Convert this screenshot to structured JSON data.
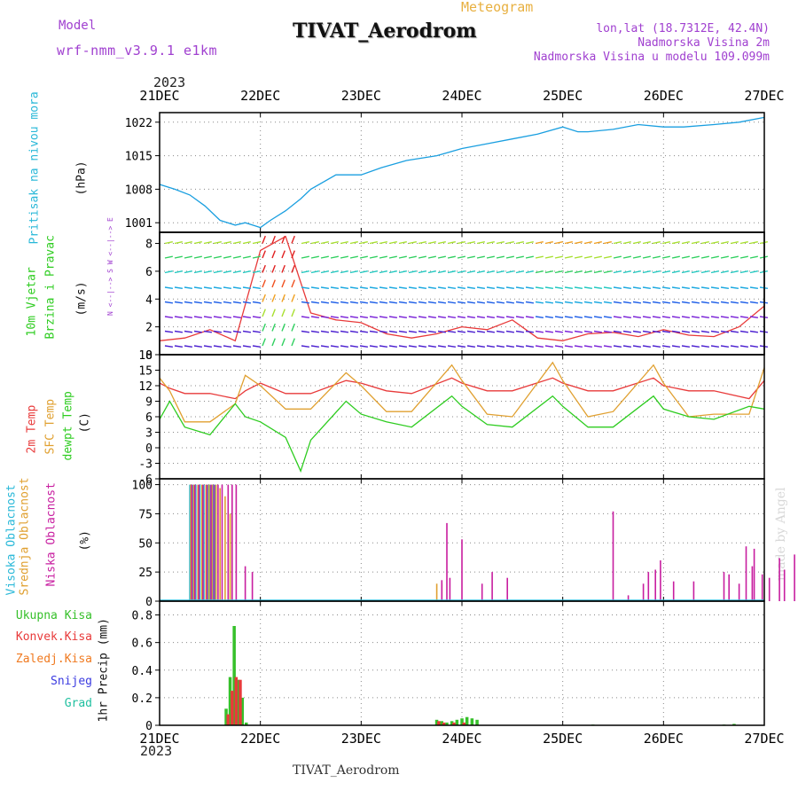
{
  "header": {
    "title": "TIVAT_Aerodrom",
    "subtitle": "Meteogram",
    "model_label": "Model",
    "model_name": "wrf-nmm_v3.9.1 e1km",
    "lonlat": "lon,lat (18.7312E, 42.4N)",
    "elevation": "Nadmorska Visina 2m",
    "model_elevation": "Nadmorska Visina u modelu 109.099m",
    "year_top": "2023",
    "year_bottom": "2023",
    "footer_title": "TIVAT_Aerodrom",
    "credit": "made by Angel"
  },
  "colors": {
    "pressure": "#1a9fe0",
    "temp2m": "#e83a3a",
    "sfc_temp": "#e0a030",
    "dewpoint": "#2ecc20",
    "high_cloud": "#29b8d8",
    "mid_cloud": "#e0a030",
    "low_cloud": "#c81ea0",
    "total_precip": "#36c02a",
    "convective": "#e83a3a",
    "frozen": "#f07a20",
    "snow": "#3a3ae0",
    "graupel": "#20c0a0",
    "purple_text": "#a040d0",
    "title_gold": "#e8b040"
  },
  "chart_data": [
    {
      "id": "pressure",
      "type": "line",
      "title": "",
      "ylabel": "(hPa)",
      "side_labels": [
        "Pritisak na nivou mora"
      ],
      "ylim": [
        999,
        1024
      ],
      "yticks": [
        1001,
        1008,
        1015,
        1022
      ],
      "xticks": [
        "21DEC",
        "22DEC",
        "23DEC",
        "24DEC",
        "25DEC",
        "26DEC",
        "27DEC"
      ],
      "series": [
        {
          "color_key": "pressure",
          "x": [
            0,
            0.15,
            0.3,
            0.45,
            0.6,
            0.75,
            0.85,
            1.0,
            1.1,
            1.25,
            1.4,
            1.5,
            1.75,
            2.0,
            2.2,
            2.45,
            2.75,
            3.0,
            3.25,
            3.5,
            3.75,
            4.0,
            4.15,
            4.25,
            4.5,
            4.75,
            5.0,
            5.2,
            5.5,
            5.75,
            6.0
          ],
          "values": [
            1009.0,
            1008.0,
            1006.8,
            1004.5,
            1001.5,
            1000.5,
            1001.0,
            1000.0,
            1001.5,
            1003.5,
            1006.0,
            1008.0,
            1011.0,
            1011.0,
            1012.5,
            1014.0,
            1015.0,
            1016.5,
            1017.5,
            1018.5,
            1019.5,
            1021.0,
            1020.0,
            1020.0,
            1020.5,
            1021.5,
            1021.0,
            1021.0,
            1021.5,
            1022.0,
            1023.0
          ]
        }
      ]
    },
    {
      "id": "wind",
      "type": "line",
      "title": "",
      "ylabel": "(m/s)",
      "side_labels": [
        "10m Vjetar",
        "Brzina i Pravac"
      ],
      "compass": "N <--|--> S   W <--|--> E",
      "ylim": [
        0,
        8.8
      ],
      "yticks": [
        0,
        2,
        4,
        6,
        8
      ],
      "xticks": [
        "21DEC",
        "22DEC",
        "23DEC",
        "24DEC",
        "25DEC",
        "26DEC",
        "27DEC"
      ],
      "series": [
        {
          "color_key": "temp2m",
          "x": [
            0,
            0.25,
            0.5,
            0.75,
            1.0,
            1.25,
            1.5,
            1.75,
            2.0,
            2.25,
            2.5,
            2.75,
            3.0,
            3.25,
            3.5,
            3.75,
            4.0,
            4.25,
            4.5,
            4.75,
            5.0,
            5.25,
            5.5,
            5.75,
            6.0
          ],
          "values": [
            1.0,
            1.2,
            1.8,
            1.0,
            7.5,
            8.5,
            3.0,
            2.5,
            2.3,
            1.5,
            1.2,
            1.5,
            2.0,
            1.8,
            2.5,
            1.2,
            1.0,
            1.5,
            1.6,
            1.3,
            1.8,
            1.4,
            1.3,
            2.0,
            3.5
          ]
        }
      ]
    },
    {
      "id": "temperature",
      "type": "line",
      "title": "",
      "ylabel": "(C)",
      "side_labels": [
        "2m Temp",
        "SFC Temp",
        "dewpt Temp"
      ],
      "ylim": [
        -6,
        18
      ],
      "yticks": [
        -6,
        -3,
        0,
        3,
        6,
        9,
        12,
        15,
        18
      ],
      "xticks": [
        "21DEC",
        "22DEC",
        "23DEC",
        "24DEC",
        "25DEC",
        "26DEC",
        "27DEC"
      ],
      "series": [
        {
          "color_key": "temp2m",
          "x": [
            0,
            0.1,
            0.25,
            0.5,
            0.75,
            0.85,
            1.0,
            1.25,
            1.5,
            1.85,
            2.0,
            2.25,
            2.5,
            2.9,
            3.0,
            3.25,
            3.5,
            3.9,
            4.0,
            4.25,
            4.5,
            4.9,
            5.0,
            5.25,
            5.5,
            5.85,
            6.0
          ],
          "values": [
            12.5,
            11.5,
            10.5,
            10.5,
            9.5,
            11.0,
            12.5,
            10.5,
            10.5,
            13.0,
            12.5,
            11.0,
            10.5,
            13.5,
            12.5,
            11.0,
            11.0,
            13.5,
            12.5,
            11.0,
            11.0,
            13.5,
            12.0,
            11.0,
            11.0,
            9.5,
            13.0
          ]
        },
        {
          "color_key": "sfc_temp",
          "x": [
            0,
            0.1,
            0.25,
            0.5,
            0.75,
            0.85,
            1.0,
            1.25,
            1.5,
            1.85,
            2.0,
            2.25,
            2.5,
            2.9,
            3.0,
            3.25,
            3.5,
            3.9,
            4.0,
            4.25,
            4.5,
            4.9,
            5.0,
            5.25,
            5.5,
            5.85,
            6.0
          ],
          "values": [
            13.5,
            11.0,
            5.0,
            5.0,
            8.5,
            14.0,
            12.0,
            7.5,
            7.5,
            14.5,
            12.0,
            7.0,
            7.0,
            16.0,
            13.0,
            6.5,
            6.0,
            16.5,
            13.0,
            6.0,
            7.0,
            16.0,
            12.5,
            6.0,
            6.5,
            6.5,
            15.5
          ]
        },
        {
          "color_key": "dewpoint",
          "x": [
            0,
            0.1,
            0.25,
            0.5,
            0.75,
            0.85,
            1.0,
            1.25,
            1.4,
            1.5,
            1.85,
            2.0,
            2.25,
            2.5,
            2.9,
            3.0,
            3.25,
            3.5,
            3.9,
            4.0,
            4.25,
            4.5,
            4.9,
            5.0,
            5.25,
            5.5,
            5.85,
            6.0
          ],
          "values": [
            5.5,
            9.0,
            4.0,
            2.5,
            8.5,
            6.0,
            5.0,
            2.0,
            -4.5,
            1.5,
            9.0,
            6.5,
            5.0,
            4.0,
            10.0,
            8.0,
            4.5,
            4.0,
            10.0,
            8.0,
            4.0,
            4.0,
            10.0,
            7.5,
            6.0,
            5.5,
            8.0,
            7.5
          ]
        }
      ]
    },
    {
      "id": "clouds",
      "type": "bar",
      "title": "",
      "ylabel": "(%)",
      "side_labels": [
        "Visoka Oblacnost",
        "Srednja Oblacnost",
        "Niska Oblacnost"
      ],
      "ylim": [
        0,
        105
      ],
      "yticks": [
        0,
        25,
        50,
        75,
        100
      ],
      "xticks": [
        "21DEC",
        "22DEC",
        "23DEC",
        "24DEC",
        "25DEC",
        "26DEC",
        "27DEC"
      ],
      "series": [
        {
          "color_key": "high_cloud",
          "x": [
            0.3,
            0.33,
            0.36,
            0.4,
            0.44,
            0.48,
            0.5,
            0.53,
            0.55
          ],
          "values": [
            100,
            100,
            100,
            100,
            100,
            100,
            100,
            100,
            100
          ]
        },
        {
          "color_key": "mid_cloud",
          "x": [
            0.31,
            0.34,
            0.38,
            0.42,
            0.46,
            0.49,
            0.52,
            0.56,
            0.6,
            0.65,
            0.7,
            2.75,
            2.8
          ],
          "values": [
            100,
            100,
            100,
            100,
            100,
            100,
            100,
            100,
            97,
            90,
            75,
            15,
            15
          ]
        },
        {
          "color_key": "low_cloud",
          "x": [
            0.32,
            0.35,
            0.39,
            0.43,
            0.47,
            0.51,
            0.54,
            0.58,
            0.62,
            0.68,
            0.72,
            0.76,
            0.85,
            0.92,
            2.8,
            2.85,
            2.88,
            3.0,
            3.2,
            3.3,
            3.45,
            4.5,
            4.65,
            4.8,
            4.85,
            4.92,
            4.97,
            5.1,
            5.3,
            5.6,
            5.65,
            5.75,
            5.82,
            5.88,
            5.9,
            5.98,
            6.05,
            6.15,
            6.2,
            6.3,
            6.4,
            6.6,
            6.7,
            6.85,
            6.9
          ],
          "values": [
            100,
            100,
            100,
            100,
            100,
            100,
            100,
            100,
            100,
            100,
            100,
            100,
            30,
            25,
            18,
            67,
            20,
            53,
            15,
            25,
            20,
            77,
            5,
            15,
            25,
            27,
            35,
            17,
            17,
            25,
            23,
            15,
            47,
            30,
            45,
            23,
            20,
            37,
            27,
            40,
            30,
            25,
            17,
            27,
            27
          ]
        }
      ]
    },
    {
      "id": "precip",
      "type": "bar",
      "title": "",
      "ylabel": "1hr Precip (mm)",
      "side_labels": [
        "Ukupna Kisa",
        "Konvek.Kisa",
        "Zaledj.Kisa",
        "Snijeg",
        "Grad"
      ],
      "ylim": [
        0,
        0.9
      ],
      "yticks": [
        0,
        0.2,
        0.4,
        0.6,
        0.8
      ],
      "xticks": [
        "21DEC",
        "22DEC",
        "23DEC",
        "24DEC",
        "25DEC",
        "26DEC",
        "27DEC"
      ],
      "series": [
        {
          "color_key": "total_precip",
          "x": [
            0.66,
            0.7,
            0.74,
            0.78,
            0.82,
            0.86,
            2.75,
            2.8,
            2.85,
            2.9,
            2.95,
            3.0,
            3.05,
            3.1,
            3.15,
            4.3,
            5.6,
            5.7
          ],
          "values": [
            0.12,
            0.35,
            0.72,
            0.33,
            0.2,
            0.02,
            0.04,
            0.03,
            0.02,
            0.03,
            0.04,
            0.05,
            0.06,
            0.05,
            0.04,
            0.005,
            0.005,
            0.01
          ]
        },
        {
          "color_key": "convective",
          "x": [
            0.68,
            0.72,
            0.76,
            0.8,
            2.77,
            2.82,
            2.92,
            3.02
          ],
          "values": [
            0.08,
            0.25,
            0.35,
            0.33,
            0.03,
            0.02,
            0.02,
            0.02
          ]
        }
      ]
    }
  ]
}
